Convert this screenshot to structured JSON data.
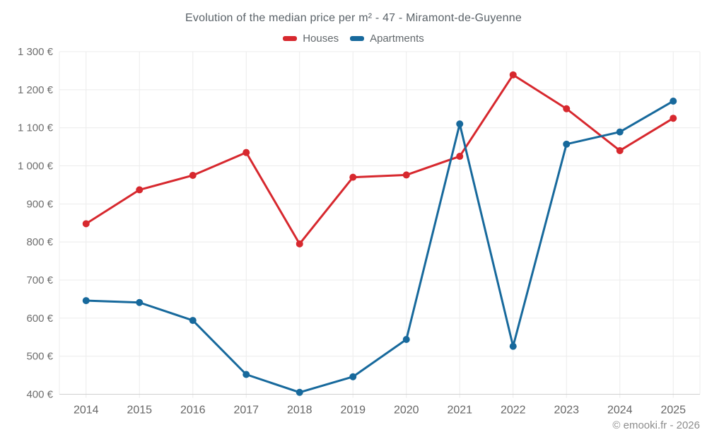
{
  "page": {
    "title": "Evolution of the median price per m² - 47 - Miramont-de-Guyenne",
    "footer": "© emooki.fr - 2026"
  },
  "legend": {
    "items": [
      {
        "label": "Houses",
        "color": "#d7282e"
      },
      {
        "label": "Apartments",
        "color": "#17699c"
      }
    ]
  },
  "chart_data": {
    "type": "line",
    "title": "Evolution of the median price per m² - 47 - Miramont-de-Guyenne",
    "categories": [
      "2014",
      "2015",
      "2016",
      "2017",
      "2018",
      "2019",
      "2020",
      "2021",
      "2022",
      "2023",
      "2024",
      "2025"
    ],
    "series": [
      {
        "name": "Houses",
        "color": "#d7282e",
        "values": [
          848,
          937,
          975,
          1035,
          795,
          970,
          976,
          1025,
          1239,
          1150,
          1040,
          1125
        ]
      },
      {
        "name": "Apartments",
        "color": "#17699c",
        "values": [
          646,
          641,
          594,
          452,
          405,
          446,
          544,
          1110,
          526,
          1057,
          1089,
          1170
        ]
      }
    ],
    "xlabel": "",
    "ylabel": "",
    "unit": "€",
    "ylim": [
      400,
      1300
    ],
    "y_ticks": [
      400,
      500,
      600,
      700,
      800,
      900,
      1000,
      1100,
      1200,
      1300
    ],
    "y_tick_labels": [
      "400 €",
      "500 €",
      "600 €",
      "700 €",
      "800 €",
      "900 €",
      "1 000 €",
      "1 100 €",
      "1 200 €",
      "1 300 €"
    ],
    "grid": true,
    "legend_position": "top",
    "annotations": [
      "© emooki.fr - 2026"
    ]
  }
}
